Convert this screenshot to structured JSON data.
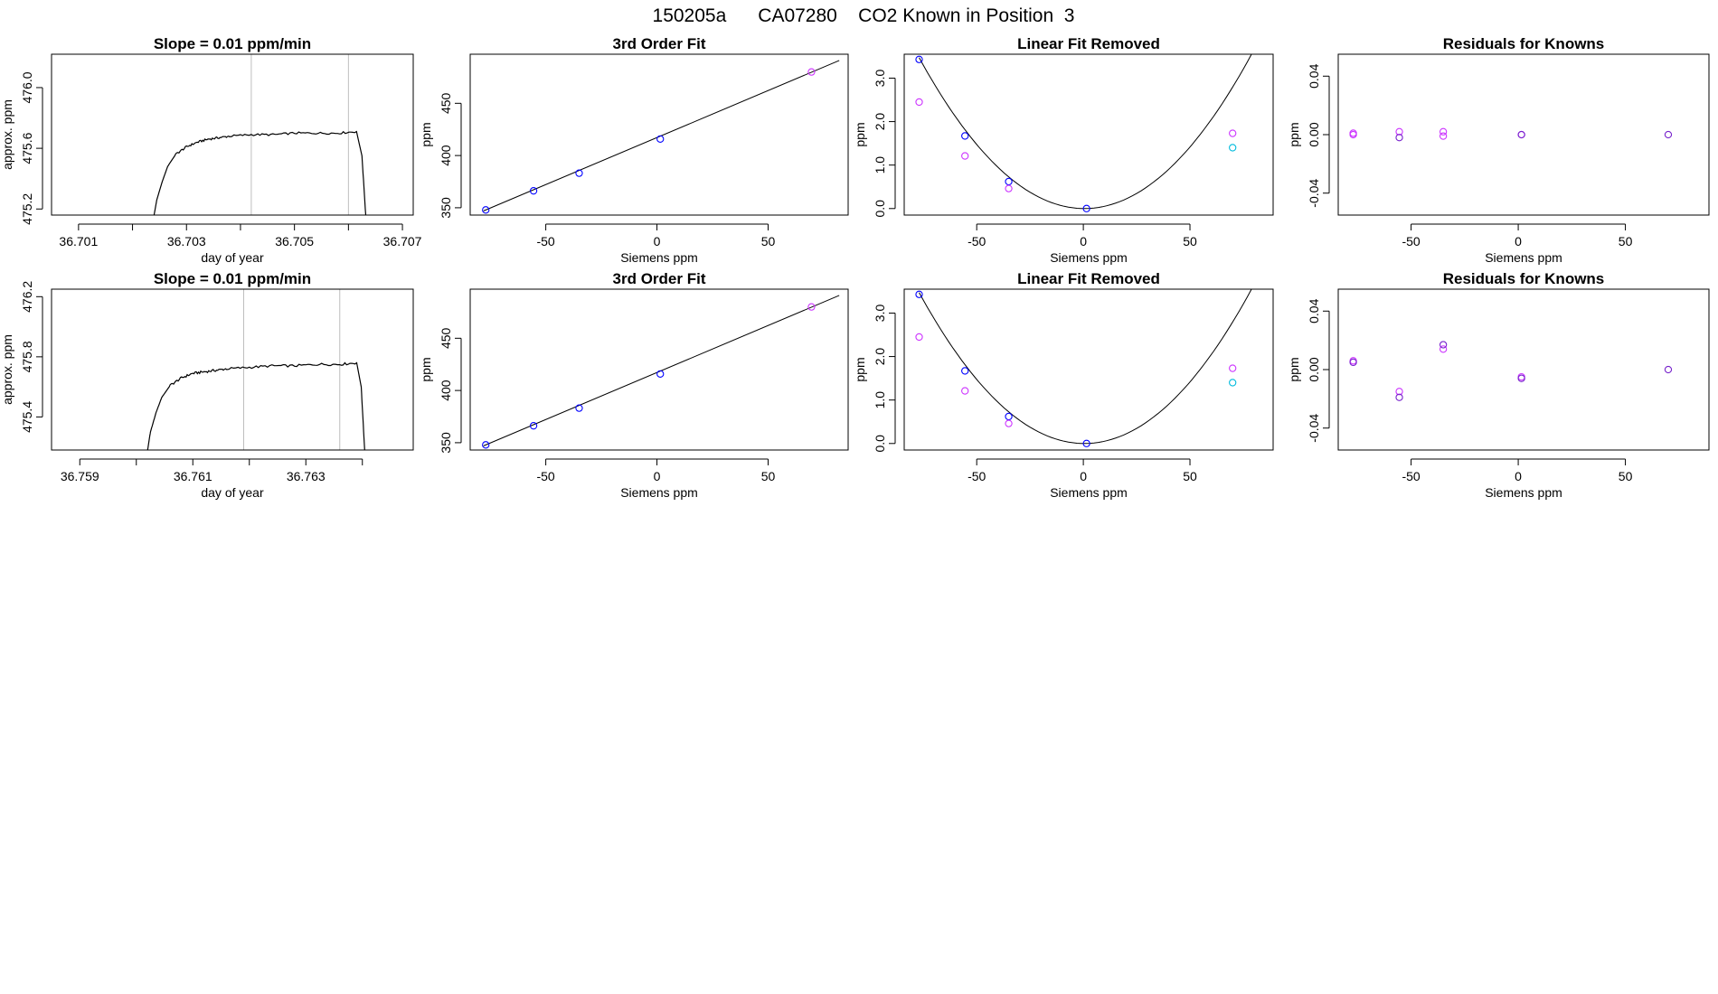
{
  "page_title": "150205a      CA07280    CO2 Known in Position  3",
  "colors": {
    "line": "#000000",
    "axis": "#000000",
    "vline": "#bebebe",
    "blue": "#0000ff",
    "magenta": "#cc33ff",
    "cyan": "#00bbdd",
    "purple": "#7722cc",
    "red": "#ff0000"
  },
  "chart_data": [
    {
      "id": "r1-trace",
      "type": "line",
      "title": "Slope =  0.01  ppm/min",
      "xlabel": "day of year",
      "ylabel": "approx. ppm",
      "xlim": [
        36.7005,
        36.7072
      ],
      "ylim": [
        475.16,
        476.22
      ],
      "xticks": [
        36.701,
        36.702,
        36.703,
        36.704,
        36.705,
        36.706,
        36.707
      ],
      "xtick_labels": [
        "36.701",
        "",
        "36.703",
        "",
        "36.705",
        "",
        "36.707"
      ],
      "yticks": [
        475.2,
        475.6,
        476.0
      ],
      "ytick_labels": [
        "475.2",
        "475.6",
        "476.0"
      ],
      "vlines": [
        36.7042,
        36.706
      ],
      "trace": {
        "x": [
          36.7024,
          36.70245,
          36.70255,
          36.70265,
          36.7028,
          36.703,
          36.7032,
          36.7034,
          36.7036,
          36.7038,
          36.7042,
          36.7046,
          36.705,
          36.7054,
          36.7058,
          36.70615,
          36.70625,
          36.70632
        ],
        "y": [
          475.16,
          475.26,
          475.38,
          475.48,
          475.56,
          475.61,
          475.64,
          475.66,
          475.67,
          475.68,
          475.69,
          475.69,
          475.7,
          475.7,
          475.7,
          475.71,
          475.55,
          475.16
        ]
      },
      "noise": 0.007
    },
    {
      "id": "r1-fit",
      "type": "scatter",
      "title": "3rd Order Fit",
      "xlabel": "Siemens ppm",
      "ylabel": "ppm",
      "xlim": [
        -84,
        86
      ],
      "ylim": [
        343,
        497
      ],
      "xticks": [
        -50,
        0,
        50
      ],
      "xtick_labels": [
        "-50",
        "0",
        "50"
      ],
      "yticks": [
        350,
        400,
        450
      ],
      "ytick_labels": [
        "350",
        "400",
        "450"
      ],
      "curve": {
        "x": [
          -78,
          82
        ],
        "y": [
          347.0,
          491.0
        ]
      },
      "series": [
        {
          "name": "",
          "color": "blue",
          "x": [
            -77.0,
            -55.5,
            -35.0,
            1.5
          ],
          "y": [
            347.9,
            366.2,
            383.1,
            415.8
          ]
        },
        {
          "name": "",
          "color": "magenta",
          "x": [
            69.5
          ],
          "y": [
            480.0
          ]
        }
      ]
    },
    {
      "id": "r1-lin",
      "type": "scatter",
      "title": "Linear Fit Removed",
      "xlabel": "Siemens ppm",
      "ylabel": "ppm",
      "xlim": [
        -84,
        89
      ],
      "ylim": [
        -0.15,
        3.55
      ],
      "xticks": [
        -50,
        0,
        50
      ],
      "xtick_labels": [
        "-50",
        "0",
        "50"
      ],
      "yticks": [
        0.0,
        1.0,
        2.0,
        3.0
      ],
      "ytick_labels": [
        "0.0",
        "1.0",
        "2.0",
        "3.0"
      ],
      "curve_quadratic": {
        "a": 0.000578,
        "b": -0.000578,
        "x0": -77,
        "x1": 83
      },
      "series": [
        {
          "name": "",
          "color": "blue",
          "x": [
            -77.0,
            -55.5,
            -35.0,
            1.5
          ],
          "y": [
            3.43,
            1.67,
            0.62,
            0.0
          ]
        },
        {
          "name": "",
          "color": "magenta",
          "x": [
            -77.0,
            -55.5,
            -35.0,
            70.0
          ],
          "y": [
            2.45,
            1.21,
            0.46,
            1.73
          ]
        },
        {
          "name": "",
          "color": "cyan",
          "x": [
            70.0
          ],
          "y": [
            1.4
          ]
        }
      ]
    },
    {
      "id": "r1-res",
      "type": "scatter",
      "title": "Residuals for Knowns",
      "xlabel": "Siemens ppm",
      "ylabel": "ppm",
      "xlim": [
        -84,
        89
      ],
      "ylim": [
        -0.055,
        0.055
      ],
      "xticks": [
        -50,
        0,
        50
      ],
      "xtick_labels": [
        "-50",
        "0",
        "50"
      ],
      "yticks": [
        -0.04,
        0.0,
        0.04
      ],
      "ytick_labels": [
        "-0.04",
        "0.00",
        "0.04"
      ],
      "series": [
        {
          "name": "",
          "color": "magenta",
          "x": [
            -77.0,
            -77.0,
            -55.5,
            -35.0,
            -35.0,
            1.5
          ],
          "y": [
            0.0,
            0.001,
            0.002,
            0.002,
            -0.001,
            0.0
          ]
        },
        {
          "name": "",
          "color": "purple",
          "x": [
            -55.5,
            1.5,
            70.0
          ],
          "y": [
            -0.002,
            0.0,
            0.0
          ]
        }
      ]
    },
    {
      "id": "r2-trace",
      "type": "line",
      "title": "Slope =  0.01  ppm/min",
      "xlabel": "day of year",
      "ylabel": "approx. ppm",
      "xlim": [
        36.7585,
        36.7649
      ],
      "ylim": [
        475.18,
        476.25
      ],
      "xticks": [
        36.759,
        36.76,
        36.761,
        36.762,
        36.763,
        36.764
      ],
      "xtick_labels": [
        "36.759",
        "",
        "36.761",
        "",
        "36.763",
        ""
      ],
      "yticks": [
        475.4,
        475.8,
        476.2
      ],
      "ytick_labels": [
        "475.4",
        "475.8",
        "476.2"
      ],
      "vlines": [
        36.7619,
        36.7636
      ],
      "trace": {
        "x": [
          36.7602,
          36.76025,
          36.76035,
          36.76045,
          36.7606,
          36.7608,
          36.761,
          36.7612,
          36.7614,
          36.7616,
          36.762,
          36.7624,
          36.7628,
          36.7632,
          36.7636,
          36.7639,
          36.76398,
          36.76404
        ],
        "y": [
          475.18,
          475.3,
          475.43,
          475.53,
          475.61,
          475.66,
          475.69,
          475.7,
          475.71,
          475.72,
          475.73,
          475.74,
          475.74,
          475.75,
          475.75,
          475.76,
          475.6,
          475.18
        ]
      },
      "noise": 0.008
    },
    {
      "id": "r2-fit",
      "type": "scatter",
      "title": "3rd Order Fit",
      "xlabel": "Siemens ppm",
      "ylabel": "ppm",
      "xlim": [
        -84,
        86
      ],
      "ylim": [
        343,
        497
      ],
      "xticks": [
        -50,
        0,
        50
      ],
      "xtick_labels": [
        "-50",
        "0",
        "50"
      ],
      "yticks": [
        350,
        400,
        450
      ],
      "ytick_labels": [
        "350",
        "400",
        "450"
      ],
      "curve": {
        "x": [
          -78,
          82
        ],
        "y": [
          347.0,
          491.0
        ]
      },
      "series": [
        {
          "name": "",
          "color": "blue",
          "x": [
            -77.0,
            -55.5,
            -35.0,
            1.5
          ],
          "y": [
            347.9,
            366.2,
            383.1,
            415.8
          ]
        },
        {
          "name": "",
          "color": "magenta",
          "x": [
            69.5
          ],
          "y": [
            480.0
          ]
        }
      ]
    },
    {
      "id": "r2-lin",
      "type": "scatter",
      "title": "Linear Fit Removed",
      "xlabel": "Siemens ppm",
      "ylabel": "ppm",
      "xlim": [
        -84,
        89
      ],
      "ylim": [
        -0.15,
        3.55
      ],
      "xticks": [
        -50,
        0,
        50
      ],
      "xtick_labels": [
        "-50",
        "0",
        "50"
      ],
      "yticks": [
        0.0,
        1.0,
        2.0,
        3.0
      ],
      "ytick_labels": [
        "0.0",
        "1.0",
        "2.0",
        "3.0"
      ],
      "curve_quadratic": {
        "a": 0.000578,
        "b": -0.000578,
        "x0": -77,
        "x1": 83
      },
      "series": [
        {
          "name": "",
          "color": "blue",
          "x": [
            -77.0,
            -55.5,
            -35.0,
            1.5
          ],
          "y": [
            3.43,
            1.67,
            0.62,
            0.0
          ]
        },
        {
          "name": "",
          "color": "magenta",
          "x": [
            -77.0,
            -55.5,
            -35.0,
            70.0
          ],
          "y": [
            2.45,
            1.21,
            0.46,
            1.73
          ]
        },
        {
          "name": "",
          "color": "cyan",
          "x": [
            70.0
          ],
          "y": [
            1.4
          ]
        }
      ]
    },
    {
      "id": "r2-res",
      "type": "scatter",
      "title": "Residuals for Knowns",
      "xlabel": "Siemens ppm",
      "ylabel": "ppm",
      "xlim": [
        -84,
        89
      ],
      "ylim": [
        -0.055,
        0.055
      ],
      "xticks": [
        -50,
        0,
        50
      ],
      "xtick_labels": [
        "-50",
        "0",
        "50"
      ],
      "yticks": [
        -0.04,
        0.0,
        0.04
      ],
      "ytick_labels": [
        "-0.04",
        "0.00",
        "0.04"
      ],
      "series": [
        {
          "name": "",
          "color": "magenta",
          "x": [
            -77.0,
            -55.5,
            -35.0,
            1.5
          ],
          "y": [
            0.006,
            -0.015,
            0.014,
            -0.005
          ]
        },
        {
          "name": "",
          "color": "purple",
          "x": [
            -77.0,
            -55.5,
            -35.0,
            1.5,
            70.0
          ],
          "y": [
            0.005,
            -0.019,
            0.017,
            -0.006,
            0.0
          ]
        }
      ]
    }
  ]
}
